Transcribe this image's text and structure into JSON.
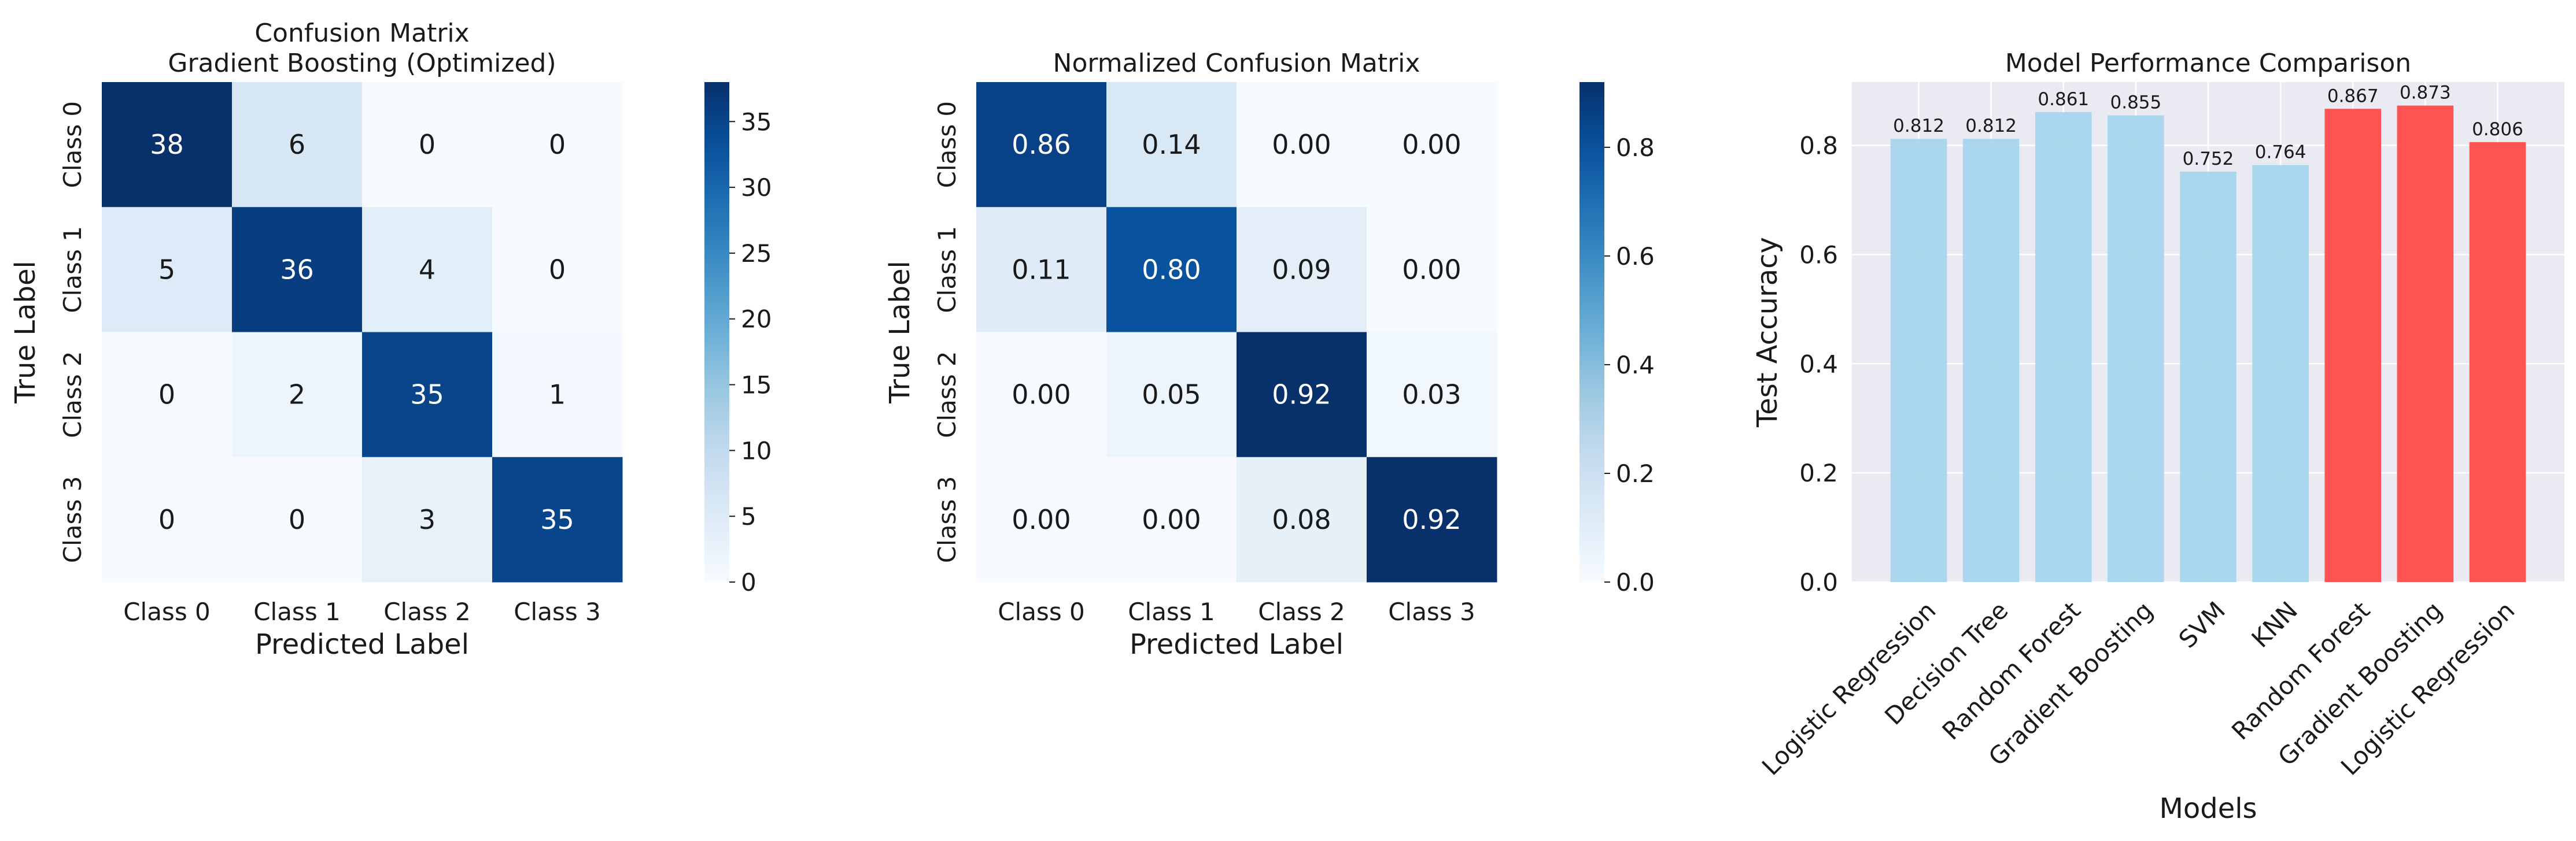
{
  "chart_data": [
    {
      "type": "heatmap",
      "title": "Confusion Matrix\nGradient Boosting (Optimized)",
      "xlabel": "Predicted Label",
      "ylabel": "True Label",
      "x_categories": [
        "Class 0",
        "Class 1",
        "Class 2",
        "Class 3"
      ],
      "y_categories": [
        "Class 0",
        "Class 1",
        "Class 2",
        "Class 3"
      ],
      "values": [
        [
          38,
          6,
          0,
          0
        ],
        [
          5,
          36,
          4,
          0
        ],
        [
          0,
          2,
          35,
          1
        ],
        [
          0,
          0,
          3,
          35
        ]
      ],
      "value_format": "int",
      "colormap": "Blues",
      "colorbar_range": [
        0,
        38
      ],
      "colorbar_ticks": [
        0,
        5,
        10,
        15,
        20,
        25,
        30,
        35
      ]
    },
    {
      "type": "heatmap",
      "title": "Normalized Confusion Matrix",
      "xlabel": "Predicted Label",
      "ylabel": "True Label",
      "x_categories": [
        "Class 0",
        "Class 1",
        "Class 2",
        "Class 3"
      ],
      "y_categories": [
        "Class 0",
        "Class 1",
        "Class 2",
        "Class 3"
      ],
      "values": [
        [
          0.86,
          0.14,
          0.0,
          0.0
        ],
        [
          0.11,
          0.8,
          0.09,
          0.0
        ],
        [
          0.0,
          0.05,
          0.92,
          0.03
        ],
        [
          0.0,
          0.0,
          0.08,
          0.92
        ]
      ],
      "value_format": "2dp",
      "colormap": "Blues",
      "colorbar_range": [
        0,
        0.92
      ],
      "colorbar_ticks": [
        0.0,
        0.2,
        0.4,
        0.6,
        0.8
      ]
    },
    {
      "type": "bar",
      "title": "Model Performance Comparison",
      "xlabel": "Models",
      "ylabel": "Test Accuracy",
      "categories": [
        "Logistic Regression",
        "Decision Tree",
        "Random Forest",
        "Gradient Boosting",
        "SVM",
        "KNN",
        "Random Forest",
        "Gradient Boosting",
        "Logistic Regression"
      ],
      "values": [
        0.812,
        0.812,
        0.861,
        0.855,
        0.752,
        0.764,
        0.867,
        0.873,
        0.806
      ],
      "bar_colors": [
        "#a6d6ec",
        "#a6d6ec",
        "#a6d6ec",
        "#a6d6ec",
        "#a6d6ec",
        "#a6d6ec",
        "#ff4a4a",
        "#ff4a4a",
        "#ff4a4a"
      ],
      "ylim": [
        0,
        0.916
      ],
      "yticks": [
        0.0,
        0.2,
        0.4,
        0.6,
        0.8
      ],
      "grid": true,
      "background": "#eaeaf2"
    }
  ]
}
